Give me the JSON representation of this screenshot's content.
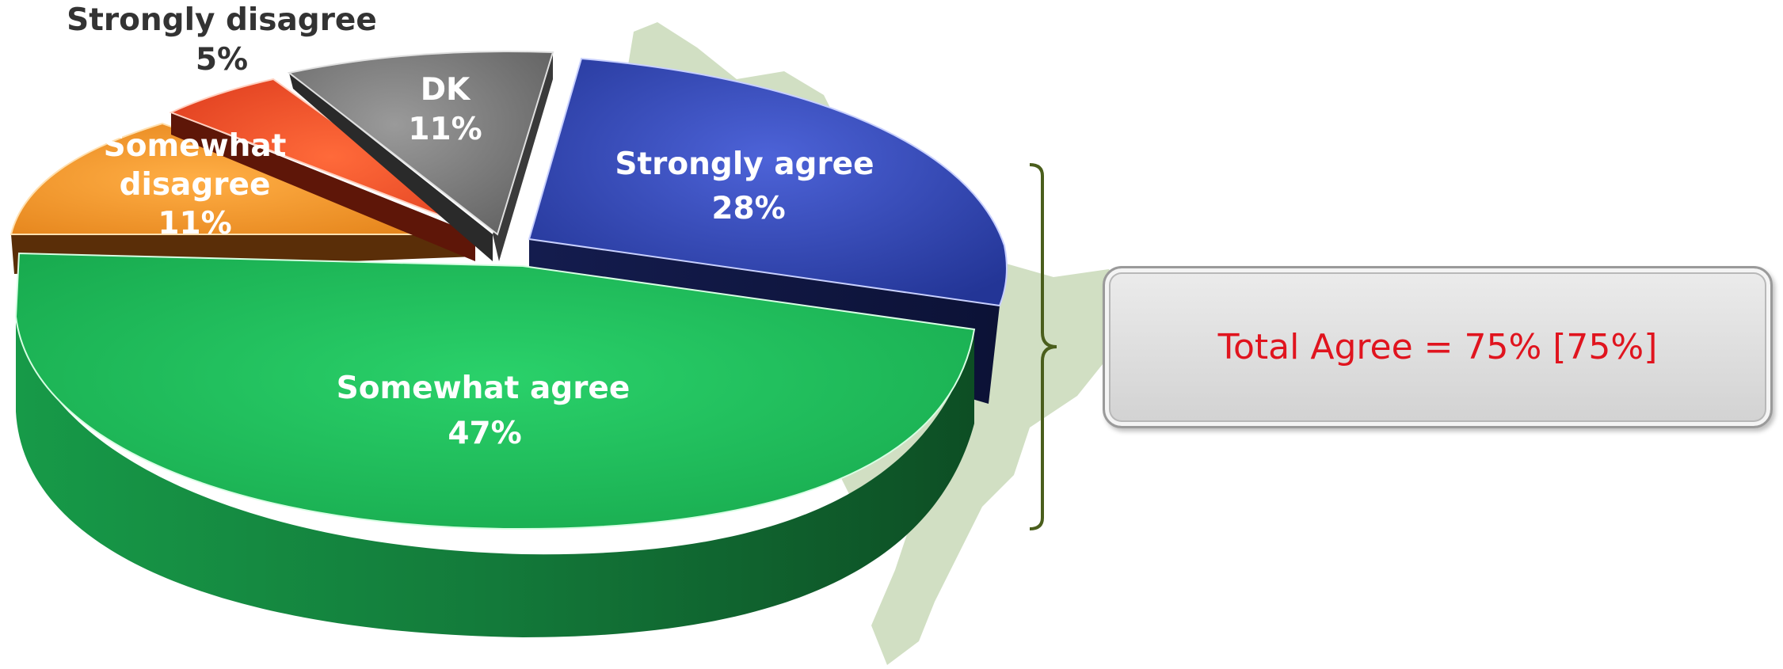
{
  "chart_data": {
    "type": "pie",
    "style": "3d-exploded",
    "categories": [
      "Strongly agree",
      "Somewhat agree",
      "Somewhat disagree",
      "Strongly disagree",
      "DK"
    ],
    "values": [
      28,
      47,
      11,
      5,
      11
    ],
    "labels": [
      {
        "name": "Strongly agree",
        "pct": "28%",
        "color": "#ffffff"
      },
      {
        "name": "Somewhat agree",
        "pct": "47%",
        "color": "#ffffff"
      },
      {
        "name": "Somewhat disagree",
        "pct": "11%",
        "color": "#ffffff"
      },
      {
        "name": "Strongly disagree",
        "pct": "5%",
        "color": "#333333"
      },
      {
        "name": "DK",
        "pct": "11%",
        "color": "#ffffff"
      }
    ],
    "colors": [
      "#3349c0",
      "#1fbd5a",
      "#f08c22",
      "#e84a22",
      "#7a7a7a"
    ],
    "annotation": "Total Agree = 75% [75%]",
    "annotation_color": "#e0141e",
    "bracket_color": "#4a5e1c",
    "background_map_color": "#c9d9b8"
  }
}
